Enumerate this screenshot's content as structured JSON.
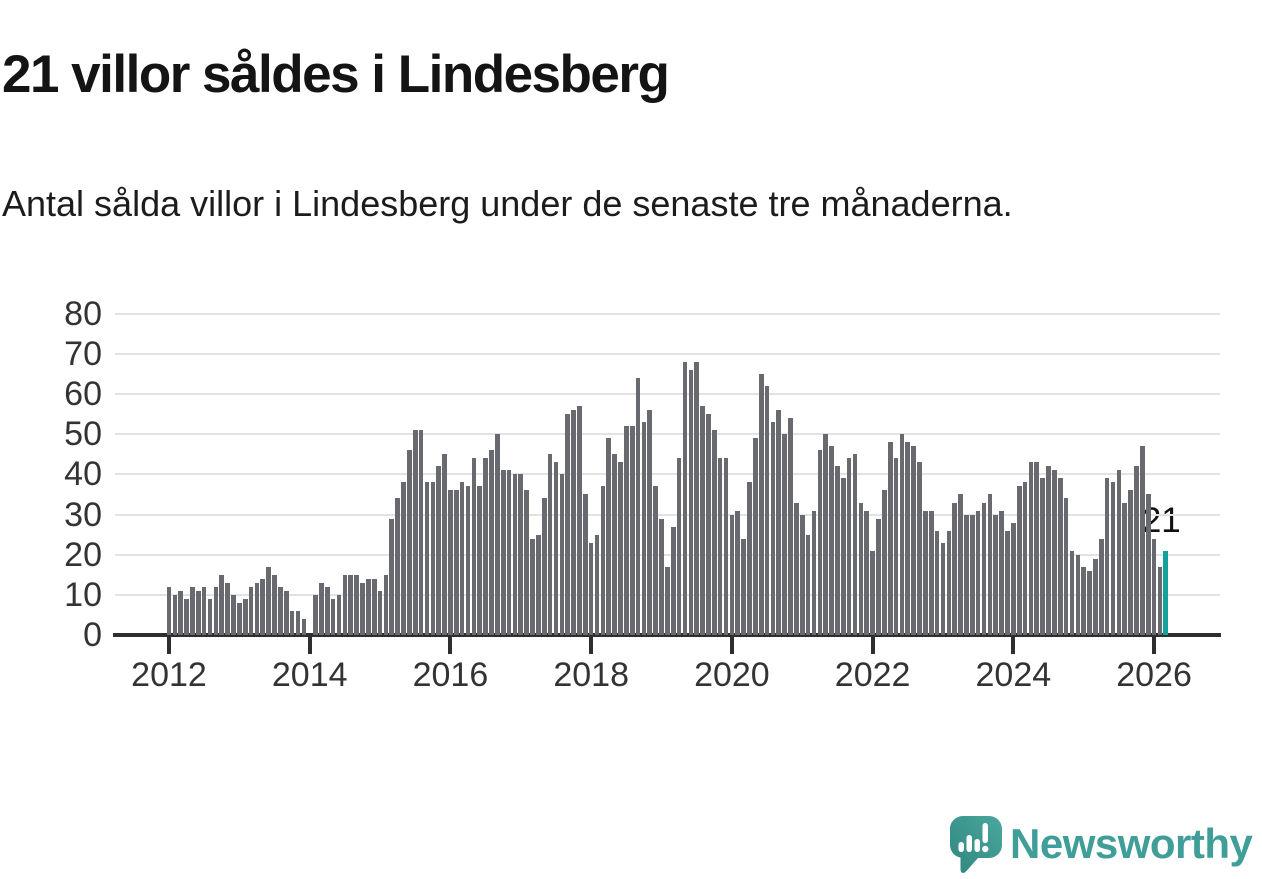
{
  "title": "21 villor såldes i Lindesberg",
  "subtitle": "Antal sålda villor i Lindesberg under de senaste tre månaderna.",
  "annotation": "21",
  "logo_text": "Newsworthy",
  "colors": {
    "bar": "#696970",
    "highlight": "#14a09b",
    "grid": "#e3e3e3",
    "axis": "#2e2e2e",
    "tick_label": "#333333",
    "title_text": "#141414",
    "logo_teal": "#3f9e97"
  },
  "chart_data": {
    "type": "bar",
    "title": "21 villor såldes i Lindesberg",
    "subtitle": "Antal sålda villor i Lindesberg under de senaste tre månaderna.",
    "grid": "horizontal",
    "legend": "none",
    "ylim": [
      0,
      80
    ],
    "y_ticks": [
      0,
      10,
      20,
      30,
      40,
      50,
      60,
      70,
      80
    ],
    "x_tick_labels": [
      "2012",
      "2014",
      "2016",
      "2018",
      "2020",
      "2022",
      "2024",
      "2026"
    ],
    "start_month": "2012-01",
    "months_per_bar": 1,
    "values": [
      12,
      10,
      11,
      9,
      12,
      11,
      12,
      9,
      12,
      15,
      13,
      10,
      8,
      9,
      12,
      13,
      14,
      17,
      15,
      12,
      11,
      6,
      6,
      4,
      0,
      10,
      13,
      12,
      9,
      10,
      15,
      15,
      15,
      13,
      14,
      14,
      11,
      15,
      29,
      34,
      38,
      46,
      51,
      51,
      38,
      38,
      42,
      45,
      36,
      36,
      38,
      37,
      44,
      37,
      44,
      46,
      50,
      41,
      41,
      40,
      40,
      36,
      24,
      25,
      34,
      45,
      43,
      40,
      55,
      56,
      57,
      35,
      23,
      25,
      37,
      49,
      45,
      43,
      52,
      52,
      64,
      53,
      56,
      37,
      29,
      17,
      27,
      44,
      68,
      66,
      68,
      57,
      55,
      51,
      44,
      44,
      30,
      31,
      24,
      38,
      49,
      65,
      62,
      53,
      56,
      50,
      54,
      33,
      30,
      25,
      31,
      46,
      50,
      47,
      42,
      39,
      44,
      45,
      33,
      31,
      21,
      29,
      36,
      48,
      44,
      50,
      48,
      47,
      43,
      31,
      31,
      26,
      23,
      26,
      33,
      35,
      30,
      30,
      31,
      33,
      35,
      30,
      31,
      26,
      28,
      37,
      38,
      43,
      43,
      39,
      42,
      41,
      39,
      34,
      21,
      20,
      17,
      16,
      19,
      24,
      39,
      38,
      41,
      33,
      36,
      42,
      47,
      35,
      24,
      17,
      21
    ],
    "highlight": {
      "position": "last",
      "value": 21,
      "label": "21",
      "color": "#14a09b"
    }
  }
}
